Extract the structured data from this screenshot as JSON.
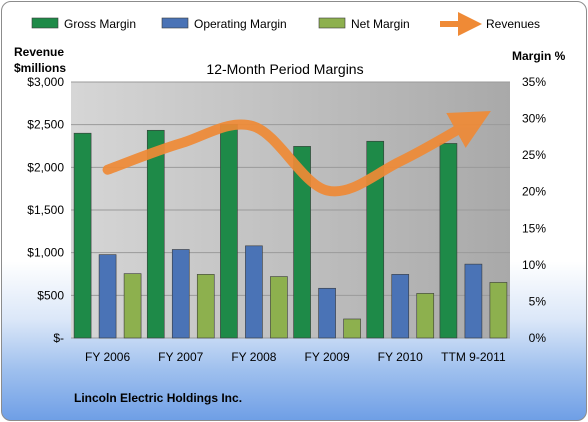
{
  "chart_data": {
    "type": "bar",
    "title": "12-Month Period Margins",
    "categories": [
      "FY 2006",
      "FY 2007",
      "FY 2008",
      "FY 2009",
      "FY 2010",
      "TTM 9-2011"
    ],
    "series": [
      {
        "name": "Gross Margin",
        "axis": "right",
        "color": "#1e8a48",
        "values": [
          28.0,
          28.4,
          29.2,
          26.2,
          26.9,
          26.6
        ]
      },
      {
        "name": "Operating Margin",
        "axis": "right",
        "color": "#4a73b6",
        "values": [
          11.4,
          12.1,
          12.6,
          6.8,
          8.7,
          10.1
        ]
      },
      {
        "name": "Net Margin",
        "axis": "right",
        "color": "#8db04e",
        "values": [
          8.8,
          8.7,
          8.4,
          2.6,
          6.1,
          7.6
        ]
      },
      {
        "name": "Revenues",
        "axis": "left",
        "type": "line",
        "color": "#ef8a36",
        "values": [
          1972,
          2281,
          2479,
          1729,
          2070,
          2546
        ]
      }
    ],
    "y_left": {
      "label": "Revenue\n$millions",
      "min": 0,
      "max": 3000,
      "ticks": [
        "$-",
        "$500",
        "$1,000",
        "$1,500",
        "$2,000",
        "$2,500",
        "$3,000"
      ]
    },
    "y_right": {
      "label": "Margin %",
      "min": 0,
      "max": 35,
      "ticks": [
        "0%",
        "5%",
        "10%",
        "15%",
        "20%",
        "25%",
        "30%",
        "35%"
      ]
    },
    "legend_position": "top",
    "grid": true,
    "footer": "Lincoln Electric Holdings Inc."
  }
}
